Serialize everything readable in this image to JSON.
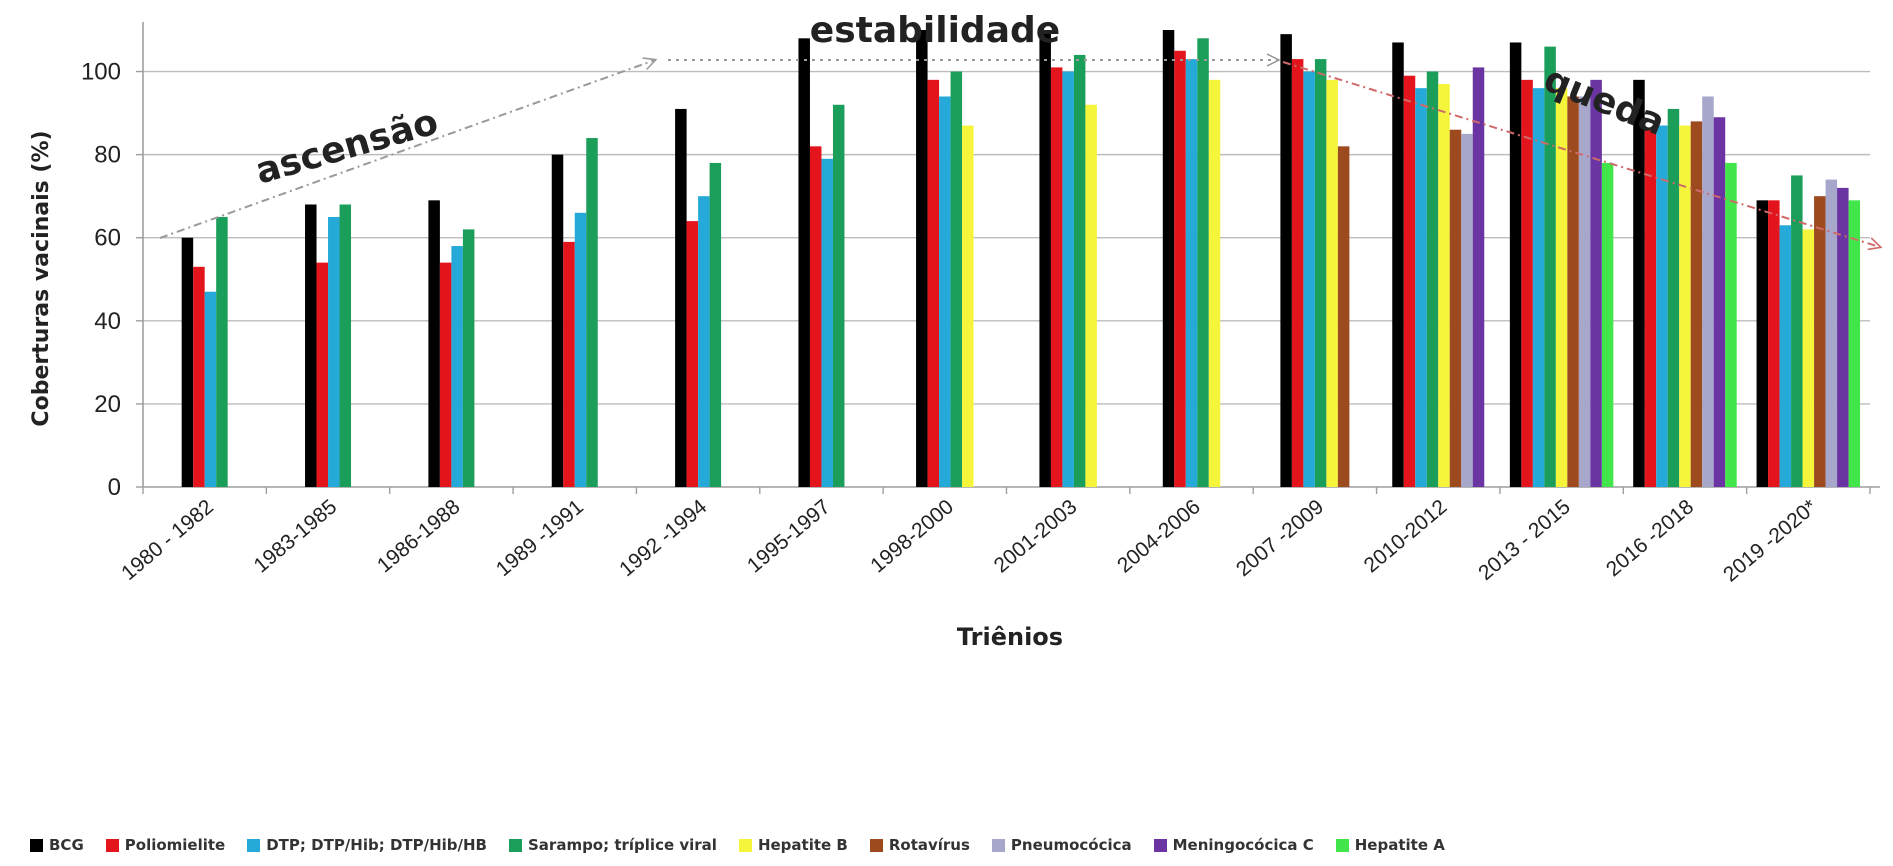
{
  "chart_data": {
    "type": "bar",
    "title": "",
    "xlabel": "Triênios",
    "ylabel": "Coberturas vacinais (%)",
    "ylim": [
      0,
      110
    ],
    "yticks": [
      0,
      20,
      40,
      60,
      80,
      100
    ],
    "grid": true,
    "legend_position": "bottom",
    "categories": [
      "1980 - 1982",
      "1983-1985",
      "1986-1988",
      "1989 -1991",
      "1992 -1994",
      "1995-1997",
      "1998-2000",
      "2001-2003",
      "2004-2006",
      "2007 -2009",
      "2010-2012",
      "2013 - 2015",
      "2016 -2018",
      "2019 -2020*"
    ],
    "series": [
      {
        "name": "BCG",
        "color": "#000000",
        "values": [
          60,
          68,
          69,
          80,
          91,
          108,
          110,
          110,
          110,
          109,
          107,
          107,
          98,
          69
        ]
      },
      {
        "name": "Poliomielite",
        "color": "#e3141b",
        "values": [
          53,
          54,
          54,
          59,
          64,
          82,
          98,
          101,
          105,
          103,
          99,
          98,
          86,
          69
        ]
      },
      {
        "name": "DTP; DTP/Hib; DTP/Hib/HB",
        "color": "#25a9d9",
        "values": [
          47,
          65,
          58,
          66,
          70,
          79,
          94,
          100,
          103,
          100,
          96,
          96,
          87,
          63
        ]
      },
      {
        "name": "Sarampo; tríplice viral",
        "color": "#1a9e5a",
        "values": [
          65,
          68,
          62,
          84,
          78,
          92,
          100,
          104,
          108,
          103,
          100,
          106,
          91,
          75
        ]
      },
      {
        "name": "Hepatite B",
        "color": "#f5f53c",
        "values": [
          null,
          null,
          null,
          null,
          null,
          null,
          87,
          92,
          98,
          98,
          97,
          96,
          87,
          62
        ]
      },
      {
        "name": "Rotavírus",
        "color": "#9c4a1e",
        "values": [
          null,
          null,
          null,
          null,
          null,
          null,
          null,
          null,
          null,
          82,
          86,
          94,
          88,
          70
        ]
      },
      {
        "name": "Pneumocócica",
        "color": "#a7a7cc",
        "values": [
          null,
          null,
          null,
          null,
          null,
          null,
          null,
          null,
          null,
          null,
          85,
          94,
          94,
          74
        ]
      },
      {
        "name": "Meningocócica C",
        "color": "#6a35a3",
        "values": [
          null,
          null,
          null,
          null,
          null,
          null,
          null,
          null,
          null,
          null,
          101,
          98,
          89,
          72
        ]
      },
      {
        "name": "Hepatite A",
        "color": "#42e64a",
        "values": [
          null,
          null,
          null,
          null,
          null,
          null,
          null,
          null,
          null,
          null,
          null,
          78,
          78,
          69
        ]
      }
    ],
    "annotations": [
      {
        "text": "ascensão",
        "from_category": "1980 - 1982",
        "to_category": "1995-1997"
      },
      {
        "text": "estabilidade",
        "from_category": "1995-1997",
        "to_category": "2013 - 2015"
      },
      {
        "text": "queda",
        "from_category": "2013 - 2015",
        "to_category": "2019 -2020*"
      }
    ]
  }
}
